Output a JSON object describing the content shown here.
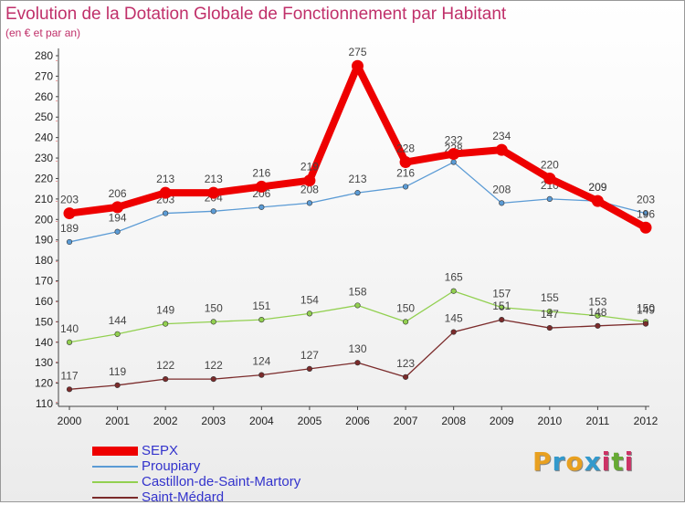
{
  "header": {
    "title": "Evolution de la Dotation Globale de Fonctionnement par Habitant",
    "subtitle": "(en € et par an)"
  },
  "chart_data": {
    "type": "line",
    "title": "Evolution de la Dotation Globale de Fonctionnement par Habitant",
    "subtitle": "(en € et par an)",
    "xlabel": "",
    "ylabel": "",
    "x": [
      "2000",
      "2001",
      "2002",
      "2003",
      "2004",
      "2005",
      "2006",
      "2007",
      "2008",
      "2009",
      "2010",
      "2011",
      "2012"
    ],
    "ylim": [
      110,
      280
    ],
    "yticks": [
      110,
      120,
      130,
      140,
      150,
      160,
      170,
      180,
      190,
      200,
      210,
      220,
      230,
      240,
      250,
      260,
      270,
      280
    ],
    "grid": false,
    "legend": "bottom-left",
    "series": [
      {
        "name": "SEPX",
        "color": "#ee0000",
        "values": [
          203,
          206,
          213,
          213,
          216,
          219,
          275,
          228,
          232,
          234,
          220,
          209,
          196
        ],
        "labels": [
          "203",
          "206",
          "213",
          "213",
          "216",
          "219",
          "275",
          "228",
          "232",
          "234",
          "220",
          "209",
          "196"
        ]
      },
      {
        "name": "Proupiary",
        "color": "#5b9bd5",
        "values": [
          189,
          194,
          203,
          204,
          206,
          208,
          213,
          216,
          228,
          208,
          210,
          209,
          203
        ],
        "labels": [
          "189",
          "194",
          "203",
          "204",
          "206",
          "208",
          "213",
          "216",
          "228",
          "208",
          "210",
          "209",
          "203"
        ]
      },
      {
        "name": "Castillon-de-Saint-Martory",
        "color": "#92d050",
        "values": [
          140,
          144,
          149,
          150,
          151,
          154,
          158,
          150,
          165,
          157,
          155,
          153,
          150
        ],
        "labels": [
          "140",
          "144",
          "149",
          "150",
          "151",
          "154",
          "158",
          "150",
          "165",
          "157",
          "155",
          "153",
          "150"
        ]
      },
      {
        "name": "Saint-Médard",
        "color": "#7b2b2b",
        "values": [
          117,
          119,
          122,
          122,
          124,
          127,
          130,
          123,
          145,
          151,
          147,
          148,
          149
        ],
        "labels": [
          "117",
          "119",
          "122",
          "122",
          "124",
          "127",
          "130",
          "123",
          "145",
          "151",
          "147",
          "148",
          "149"
        ]
      }
    ]
  },
  "logo": {
    "letters": [
      "P",
      "r",
      "o",
      "x",
      "i",
      "t",
      "i"
    ],
    "colors": [
      "#e8a020",
      "#3399cc",
      "#e8a020",
      "#3399cc",
      "#cc3366",
      "#66aa33",
      "#cc3366"
    ]
  }
}
